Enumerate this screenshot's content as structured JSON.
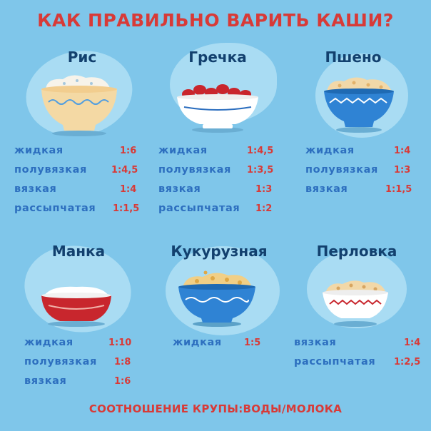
{
  "title": "КАК ПРАВИЛЬНО ВАРИТЬ КАШИ?",
  "footer": "СООТНОШЕНИЕ КРУПЫ:ВОДЫ/МОЛОКА",
  "grains": [
    {
      "name": "Рис",
      "rows": [
        {
          "label": "жидкая",
          "ratio": "1:6"
        },
        {
          "label": "полувязкая",
          "ratio": "1:4,5"
        },
        {
          "label": "вязкая",
          "ratio": "1:4"
        },
        {
          "label": "рассыпчатая",
          "ratio": "1:1,5"
        }
      ]
    },
    {
      "name": "Гречка",
      "rows": [
        {
          "label": "жидкая",
          "ratio": "1:4,5"
        },
        {
          "label": "полувязкая",
          "ratio": "1:3,5"
        },
        {
          "label": "вязкая",
          "ratio": "1:3"
        },
        {
          "label": "рассыпчатая",
          "ratio": "1:2"
        }
      ]
    },
    {
      "name": "Пшено",
      "rows": [
        {
          "label": "жидкая",
          "ratio": "1:4"
        },
        {
          "label": "полувязкая",
          "ratio": "1:3"
        },
        {
          "label": "вязкая",
          "ratio": "1:1,5"
        }
      ]
    },
    {
      "name": "Манка",
      "rows": [
        {
          "label": "жидкая",
          "ratio": "1:10"
        },
        {
          "label": "полувязкая",
          "ratio": "1:8"
        },
        {
          "label": "вязкая",
          "ratio": "1:6"
        }
      ]
    },
    {
      "name": "Кукурузная",
      "rows": [
        {
          "label": "жидкая",
          "ratio": "1:5"
        }
      ]
    },
    {
      "name": "Перловка",
      "rows": [
        {
          "label": "вязкая",
          "ratio": "1:4"
        },
        {
          "label": "рассыпчатая",
          "ratio": "1:2,5"
        }
      ]
    }
  ],
  "bowl_icons": [
    "rice-bowl-icon",
    "buckwheat-bowl-icon",
    "millet-bowl-icon",
    "semolina-bowl-icon",
    "corn-porridge-bowl-icon",
    "barley-bowl-icon"
  ],
  "colors": {
    "background": "#7fc6ea",
    "title": "#d83a37",
    "grain_name": "#12406e",
    "row_label": "#2d6fbf",
    "ratio": "#d83a37"
  }
}
